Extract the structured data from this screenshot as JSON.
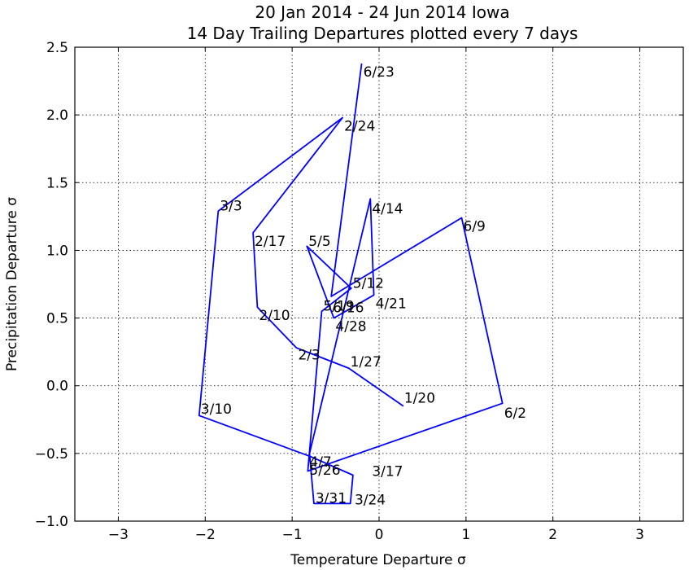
{
  "chart_data": {
    "type": "line",
    "title": "20 Jan 2014 - 24 Jun 2014 Iowa",
    "subtitle": "14 Day Trailing Departures plotted every 7 days",
    "xlabel": "Temperature Departure σ",
    "ylabel": "Precipitation Departure σ",
    "xlim": [
      -3.5,
      3.5
    ],
    "ylim": [
      -1.0,
      2.5
    ],
    "xticks": [
      -3,
      -2,
      -1,
      0,
      1,
      2,
      3
    ],
    "xtick_labels": [
      "−3",
      "−2",
      "−1",
      "0",
      "1",
      "2",
      "3"
    ],
    "yticks": [
      -1.0,
      -0.5,
      0.0,
      0.5,
      1.0,
      1.5,
      2.0,
      2.5
    ],
    "ytick_labels": [
      "−1.0",
      "−0.5",
      "0.0",
      "0.5",
      "1.0",
      "1.5",
      "2.0",
      "2.5"
    ],
    "grid": true,
    "series_color": "#0000ff",
    "points": [
      {
        "label": "1/20",
        "x": 0.28,
        "y": -0.15
      },
      {
        "label": "1/27",
        "x": -0.35,
        "y": 0.13
      },
      {
        "label": "2/3",
        "x": -0.95,
        "y": 0.28
      },
      {
        "label": "2/10",
        "x": -1.4,
        "y": 0.58
      },
      {
        "label": "2/17",
        "x": -1.45,
        "y": 1.13
      },
      {
        "label": "2/24",
        "x": -0.42,
        "y": 1.98
      },
      {
        "label": "3/3",
        "x": -1.85,
        "y": 1.29
      },
      {
        "label": "3/10",
        "x": -2.07,
        "y": -0.22
      },
      {
        "label": "3/17",
        "x": -0.8,
        "y": -0.52
      },
      {
        "label": "3/24",
        "x": -0.3,
        "y": -0.66
      },
      {
        "label": "3/31",
        "x": -0.33,
        "y": -0.87
      },
      {
        "label": "4/7",
        "x": -0.75,
        "y": -0.87
      },
      {
        "label": "4/14",
        "x": -0.8,
        "y": -0.5
      },
      {
        "label": "4/21",
        "x": -0.1,
        "y": 1.38
      },
      {
        "label": "4/28",
        "x": -0.06,
        "y": 0.67
      },
      {
        "label": "5/5",
        "x": -0.52,
        "y": 0.5
      },
      {
        "label": "5/12",
        "x": -0.83,
        "y": 1.03
      },
      {
        "label": "5/19",
        "x": -0.32,
        "y": 0.72
      },
      {
        "label": "5/26",
        "x": -0.66,
        "y": 0.55
      },
      {
        "label": "6/2",
        "x": -0.82,
        "y": -0.63
      },
      {
        "label": "6/9",
        "x": 1.42,
        "y": -0.13
      },
      {
        "label": "6/16",
        "x": 0.95,
        "y": 1.24
      },
      {
        "label": "6/23",
        "x": -0.55,
        "y": 0.66
      }
    ],
    "extra_points": [
      {
        "x": -0.2,
        "y": 2.38
      }
    ],
    "label_positions": {
      "1/20": [
        0.27,
        -0.09
      ],
      "1/27": [
        -0.35,
        0.18
      ],
      "2/3": [
        -0.95,
        0.23
      ],
      "2/10": [
        -1.4,
        0.52
      ],
      "2/17": [
        -1.45,
        1.07
      ],
      "2/24": [
        -0.42,
        1.92
      ],
      "3/3": [
        -1.85,
        1.33
      ],
      "3/10": [
        -2.07,
        -0.17
      ],
      "3/17": [
        -0.1,
        -0.63
      ],
      "3/24": [
        -0.3,
        -0.84
      ],
      "3/31": [
        -0.75,
        -0.83
      ],
      "4/7": [
        -0.82,
        -0.56
      ],
      "4/14": [
        -0.1,
        1.31
      ],
      "4/21": [
        -0.06,
        0.61
      ],
      "4/28": [
        -0.52,
        0.44
      ],
      "5/5": [
        -0.83,
        1.07
      ],
      "5/12": [
        -0.32,
        0.76
      ],
      "5/19": [
        -0.66,
        0.59
      ],
      "5/26": [
        -0.82,
        -0.62
      ],
      "6/2": [
        1.42,
        -0.2
      ],
      "6/9": [
        0.95,
        1.18
      ],
      "6/16": [
        -0.55,
        0.58
      ],
      "6/23": [
        -0.2,
        2.32
      ]
    }
  }
}
